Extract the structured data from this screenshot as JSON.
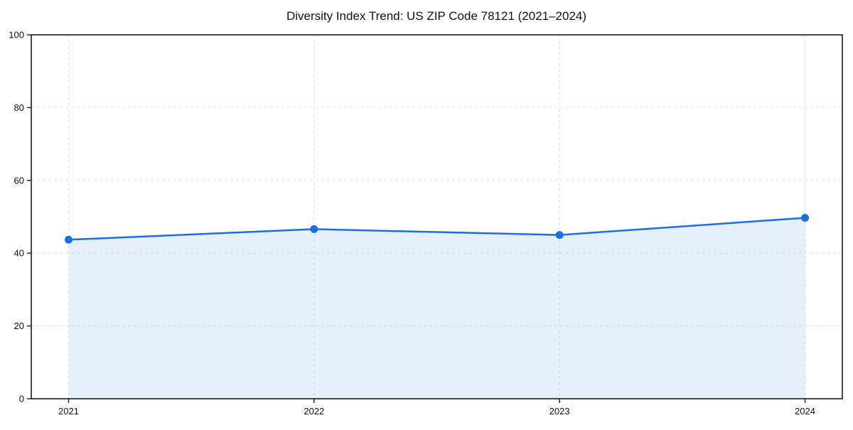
{
  "chart_data": {
    "type": "line",
    "title": "Diversity Index Trend: US ZIP Code 78121 (2021–2024)",
    "x": [
      2021,
      2022,
      2023,
      2024
    ],
    "series": [
      {
        "name": "Diversity Index",
        "values": [
          43.7,
          46.6,
          45.0,
          49.7
        ]
      }
    ],
    "xlabel": "",
    "ylabel": "",
    "ylim": [
      0,
      100
    ],
    "yticks": [
      0,
      20,
      40,
      60,
      80,
      100
    ],
    "grid": true,
    "grid_style": "dashed",
    "legend_position": "none",
    "style": {
      "line_color": "#1b6fe2",
      "line_width": 2.5,
      "marker": "circle",
      "marker_size": 5.5,
      "fill_under": true,
      "fill_color": "#1b6fe2",
      "fill_opacity": 0.11,
      "grid_color": "#e4e4e4",
      "spine_color": "#1a1a1a",
      "text_color": "#111111"
    }
  }
}
